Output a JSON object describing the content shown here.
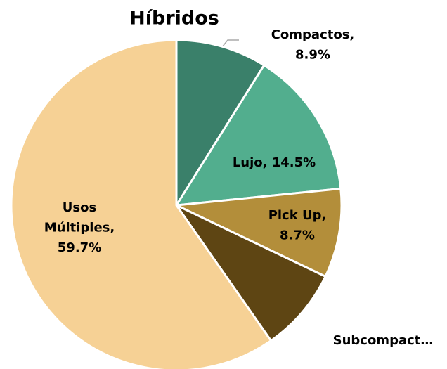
{
  "chart_data": {
    "type": "pie",
    "title": "Híbridos",
    "labels": [
      [
        "Compactos,",
        "8.9%"
      ],
      [
        "Lujo, 14.5%"
      ],
      [
        "Pick Up,",
        "8.7%"
      ],
      [
        "Subcompact…"
      ],
      [
        "Usos",
        "Múltiples,",
        "59.7%"
      ]
    ],
    "values": [
      8.9,
      14.5,
      8.7,
      8.2,
      59.7
    ],
    "colors": [
      "#3a806a",
      "#52ae8e",
      "#b38e3a",
      "#5e4513",
      "#f6d195"
    ]
  }
}
